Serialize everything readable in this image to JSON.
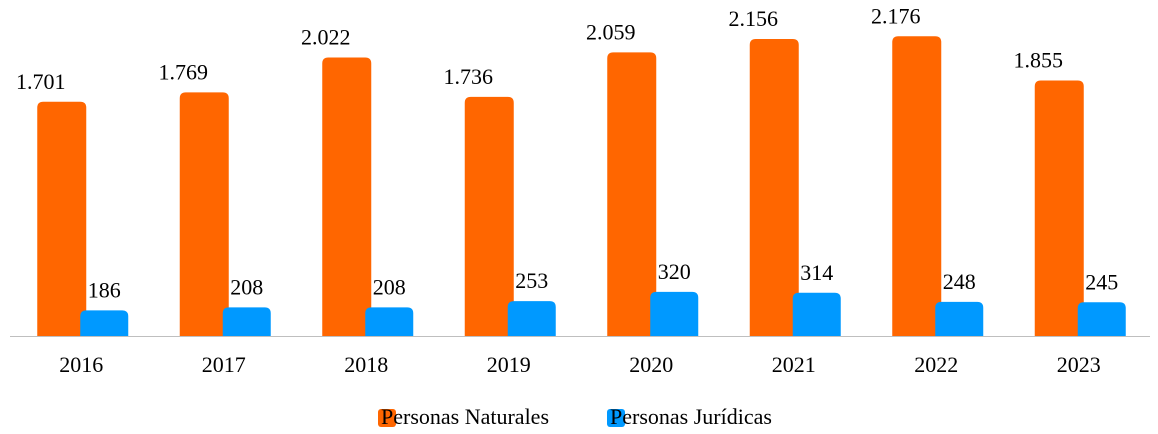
{
  "chart_data": {
    "type": "bar",
    "categories": [
      "2016",
      "2017",
      "2018",
      "2019",
      "2020",
      "2021",
      "2022",
      "2023"
    ],
    "series": [
      {
        "name": "Personas Naturales",
        "color": "#ff6600",
        "values": [
          1701,
          1769,
          2022,
          1736,
          2059,
          2156,
          2176,
          1855
        ],
        "value_labels": [
          "1.701",
          "1.769",
          "2.022",
          "1.736",
          "2.059",
          "2.156",
          "2.176",
          "1.855"
        ]
      },
      {
        "name": "Personas Jurídicas",
        "color": "#0099ff",
        "values": [
          186,
          208,
          208,
          253,
          320,
          314,
          248,
          245
        ],
        "value_labels": [
          "186",
          "208",
          "208",
          "253",
          "320",
          "314",
          "248",
          "245"
        ]
      }
    ],
    "ylim": [
      0,
      2200
    ],
    "legend": "bottom"
  }
}
